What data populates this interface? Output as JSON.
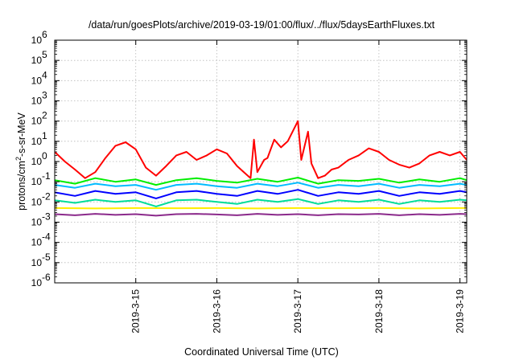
{
  "chart_data": {
    "type": "line",
    "title": "/data/run/goesPlots/archive/2019-03-19/01:00/flux/../flux/5daysEarthFluxes.txt",
    "xlabel": "Coordinated Universal Time (UTC)",
    "ylabel": "protons/cm2-s-sr-MeV",
    "ylabel_parts": {
      "base": "protons/cm",
      "sup": "2",
      "rest": "-s-sr-MeV"
    },
    "y_scale": "log",
    "ylim": [
      1e-06,
      1000000.0
    ],
    "y_tick_exponents": [
      -6,
      -5,
      -4,
      -3,
      -2,
      -1,
      0,
      1,
      2,
      3,
      4,
      5,
      6
    ],
    "y_tick_base": "10",
    "xlim": [
      "2019-03-14T00:00",
      "2019-03-19T02:00"
    ],
    "x_ticks": [
      "2019-3-15",
      "2019-3-16",
      "2019-3-17",
      "2019-3-18",
      "2019-3-19"
    ],
    "grid": true,
    "legend": "none",
    "series": [
      {
        "color": "#ff0000",
        "x": [
          "2019-03-14T00:00",
          "2019-03-14T03:00",
          "2019-03-14T06:00",
          "2019-03-14T09:00",
          "2019-03-14T12:00",
          "2019-03-14T15:00",
          "2019-03-14T18:00",
          "2019-03-14T21:00",
          "2019-03-15T00:00",
          "2019-03-15T03:00",
          "2019-03-15T06:00",
          "2019-03-15T09:00",
          "2019-03-15T12:00",
          "2019-03-15T15:00",
          "2019-03-15T18:00",
          "2019-03-15T21:00",
          "2019-03-16T00:00",
          "2019-03-16T03:00",
          "2019-03-16T06:00",
          "2019-03-16T08:00",
          "2019-03-16T10:00",
          "2019-03-16T11:00",
          "2019-03-16T12:00",
          "2019-03-16T14:00",
          "2019-03-16T15:00",
          "2019-03-16T17:00",
          "2019-03-16T19:00",
          "2019-03-16T21:00",
          "2019-03-17T00:00",
          "2019-03-17T01:00",
          "2019-03-17T03:00",
          "2019-03-17T04:00",
          "2019-03-17T06:00",
          "2019-03-17T08:00",
          "2019-03-17T10:00",
          "2019-03-17T12:00",
          "2019-03-17T15:00",
          "2019-03-17T18:00",
          "2019-03-17T21:00",
          "2019-03-18T00:00",
          "2019-03-18T03:00",
          "2019-03-18T06:00",
          "2019-03-18T09:00",
          "2019-03-18T12:00",
          "2019-03-18T15:00",
          "2019-03-18T18:00",
          "2019-03-18T21:00",
          "2019-03-19T00:00",
          "2019-03-19T02:00"
        ],
        "values": [
          3,
          1,
          0.4,
          0.15,
          0.3,
          1.5,
          6,
          9,
          4,
          0.5,
          0.2,
          0.6,
          2,
          3,
          1.2,
          2,
          4,
          2.5,
          0.6,
          0.3,
          0.15,
          12,
          0.3,
          1.2,
          1.5,
          12,
          5,
          10,
          100,
          1.2,
          30,
          0.8,
          0.15,
          0.2,
          0.4,
          0.5,
          1.2,
          2,
          4.5,
          3,
          1.2,
          0.7,
          0.5,
          0.8,
          2,
          3,
          2,
          3,
          1.2
        ]
      },
      {
        "color": "#00ee00",
        "x": [
          "2019-03-14T00:00",
          "2019-03-14T06:00",
          "2019-03-14T12:00",
          "2019-03-14T18:00",
          "2019-03-15T00:00",
          "2019-03-15T06:00",
          "2019-03-15T12:00",
          "2019-03-15T18:00",
          "2019-03-16T00:00",
          "2019-03-16T06:00",
          "2019-03-16T12:00",
          "2019-03-16T18:00",
          "2019-03-17T00:00",
          "2019-03-17T06:00",
          "2019-03-17T12:00",
          "2019-03-17T18:00",
          "2019-03-18T00:00",
          "2019-03-18T06:00",
          "2019-03-18T12:00",
          "2019-03-18T18:00",
          "2019-03-19T00:00",
          "2019-03-19T02:00"
        ],
        "values": [
          0.12,
          0.08,
          0.15,
          0.1,
          0.13,
          0.07,
          0.12,
          0.15,
          0.11,
          0.09,
          0.14,
          0.1,
          0.16,
          0.08,
          0.12,
          0.11,
          0.14,
          0.09,
          0.13,
          0.1,
          0.15,
          0.12
        ]
      },
      {
        "color": "#00bbff",
        "x": [
          "2019-03-14T00:00",
          "2019-03-14T06:00",
          "2019-03-14T12:00",
          "2019-03-14T18:00",
          "2019-03-15T00:00",
          "2019-03-15T06:00",
          "2019-03-15T12:00",
          "2019-03-15T18:00",
          "2019-03-16T00:00",
          "2019-03-16T06:00",
          "2019-03-16T12:00",
          "2019-03-16T18:00",
          "2019-03-17T00:00",
          "2019-03-17T06:00",
          "2019-03-17T12:00",
          "2019-03-17T18:00",
          "2019-03-18T00:00",
          "2019-03-18T06:00",
          "2019-03-18T12:00",
          "2019-03-18T18:00",
          "2019-03-19T00:00",
          "2019-03-19T02:00"
        ],
        "values": [
          0.07,
          0.05,
          0.08,
          0.06,
          0.07,
          0.04,
          0.07,
          0.08,
          0.06,
          0.05,
          0.08,
          0.06,
          0.09,
          0.05,
          0.07,
          0.06,
          0.08,
          0.05,
          0.07,
          0.06,
          0.08,
          0.07
        ]
      },
      {
        "color": "#0000ff",
        "x": [
          "2019-03-14T00:00",
          "2019-03-14T06:00",
          "2019-03-14T12:00",
          "2019-03-14T18:00",
          "2019-03-15T00:00",
          "2019-03-15T06:00",
          "2019-03-15T12:00",
          "2019-03-15T18:00",
          "2019-03-16T00:00",
          "2019-03-16T06:00",
          "2019-03-16T12:00",
          "2019-03-16T18:00",
          "2019-03-17T00:00",
          "2019-03-17T06:00",
          "2019-03-17T12:00",
          "2019-03-17T18:00",
          "2019-03-18T00:00",
          "2019-03-18T06:00",
          "2019-03-18T12:00",
          "2019-03-18T18:00",
          "2019-03-19T00:00",
          "2019-03-19T02:00"
        ],
        "values": [
          0.03,
          0.02,
          0.035,
          0.025,
          0.03,
          0.015,
          0.03,
          0.035,
          0.025,
          0.02,
          0.035,
          0.025,
          0.04,
          0.02,
          0.03,
          0.025,
          0.035,
          0.02,
          0.03,
          0.025,
          0.035,
          0.03
        ]
      },
      {
        "color": "#00dd99",
        "x": [
          "2019-03-14T00:00",
          "2019-03-14T06:00",
          "2019-03-14T12:00",
          "2019-03-14T18:00",
          "2019-03-15T00:00",
          "2019-03-15T06:00",
          "2019-03-15T12:00",
          "2019-03-15T18:00",
          "2019-03-16T00:00",
          "2019-03-16T06:00",
          "2019-03-16T12:00",
          "2019-03-16T18:00",
          "2019-03-17T00:00",
          "2019-03-17T06:00",
          "2019-03-17T12:00",
          "2019-03-17T18:00",
          "2019-03-18T00:00",
          "2019-03-18T06:00",
          "2019-03-18T12:00",
          "2019-03-18T18:00",
          "2019-03-19T00:00",
          "2019-03-19T02:00"
        ],
        "values": [
          0.012,
          0.009,
          0.013,
          0.01,
          0.012,
          0.006,
          0.012,
          0.013,
          0.01,
          0.008,
          0.013,
          0.01,
          0.014,
          0.008,
          0.012,
          0.01,
          0.013,
          0.008,
          0.012,
          0.01,
          0.013,
          0.012
        ]
      },
      {
        "color": "#ffee00",
        "x": [
          "2019-03-14T00:00",
          "2019-03-14T12:00",
          "2019-03-15T00:00",
          "2019-03-15T12:00",
          "2019-03-16T00:00",
          "2019-03-16T12:00",
          "2019-03-17T00:00",
          "2019-03-17T12:00",
          "2019-03-18T00:00",
          "2019-03-18T12:00",
          "2019-03-19T00:00",
          "2019-03-19T02:00"
        ],
        "values": [
          0.005,
          0.0048,
          0.005,
          0.0049,
          0.005,
          0.0048,
          0.005,
          0.0049,
          0.005,
          0.0048,
          0.005,
          0.005
        ]
      },
      {
        "color": "#8b2a8b",
        "x": [
          "2019-03-14T00:00",
          "2019-03-14T06:00",
          "2019-03-14T12:00",
          "2019-03-14T18:00",
          "2019-03-15T00:00",
          "2019-03-15T06:00",
          "2019-03-15T12:00",
          "2019-03-15T18:00",
          "2019-03-16T00:00",
          "2019-03-16T06:00",
          "2019-03-16T12:00",
          "2019-03-16T18:00",
          "2019-03-17T00:00",
          "2019-03-17T06:00",
          "2019-03-17T12:00",
          "2019-03-17T18:00",
          "2019-03-18T00:00",
          "2019-03-18T06:00",
          "2019-03-18T12:00",
          "2019-03-18T18:00",
          "2019-03-19T00:00",
          "2019-03-19T02:00"
        ],
        "values": [
          0.0025,
          0.0022,
          0.0026,
          0.0023,
          0.0025,
          0.0021,
          0.0025,
          0.0026,
          0.0024,
          0.0022,
          0.0026,
          0.0023,
          0.0025,
          0.0022,
          0.0025,
          0.0024,
          0.0026,
          0.0022,
          0.0025,
          0.0023,
          0.0026,
          0.0025
        ]
      }
    ]
  }
}
